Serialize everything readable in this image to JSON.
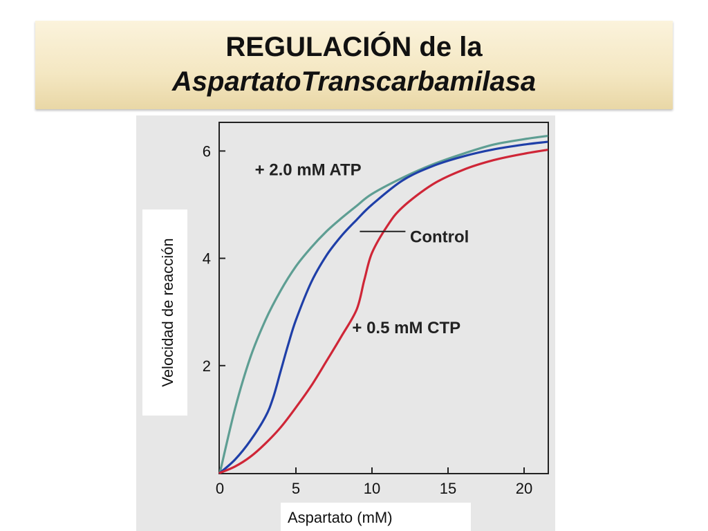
{
  "title": {
    "line1": "REGULACIÓN de la",
    "line2": "AspartatoTranscarbamilasa"
  },
  "colors": {
    "atp": "#5e9e93",
    "control": "#1f3fa8",
    "ctp": "#cf2637",
    "axis": "#222222"
  },
  "chart_data": {
    "type": "line",
    "title": "",
    "xlabel": "Aspartato (mM)",
    "ylabel": "Velocidad de reacción",
    "xlim": [
      0,
      21.5
    ],
    "ylim": [
      0,
      6.5
    ],
    "xticks": [
      0,
      5,
      10,
      15,
      20
    ],
    "yticks": [
      2,
      4,
      6
    ],
    "grid": false,
    "series": [
      {
        "name": "+ 2.0 mM ATP",
        "color_key": "atp",
        "points": [
          [
            0,
            0
          ],
          [
            1,
            1.2
          ],
          [
            2,
            2.15
          ],
          [
            3,
            2.85
          ],
          [
            4,
            3.4
          ],
          [
            5,
            3.85
          ],
          [
            6,
            4.2
          ],
          [
            7,
            4.5
          ],
          [
            8,
            4.75
          ],
          [
            9,
            4.98
          ],
          [
            10,
            5.2
          ],
          [
            12,
            5.5
          ],
          [
            14,
            5.75
          ],
          [
            16,
            5.95
          ],
          [
            18,
            6.12
          ],
          [
            20,
            6.22
          ],
          [
            21.5,
            6.28
          ]
        ]
      },
      {
        "name": "Control",
        "color_key": "control",
        "points": [
          [
            0,
            0
          ],
          [
            1,
            0.25
          ],
          [
            2,
            0.6
          ],
          [
            3,
            1.05
          ],
          [
            3.5,
            1.4
          ],
          [
            4,
            1.9
          ],
          [
            4.5,
            2.4
          ],
          [
            5,
            2.85
          ],
          [
            6,
            3.55
          ],
          [
            7,
            4.05
          ],
          [
            8,
            4.42
          ],
          [
            9,
            4.72
          ],
          [
            10,
            5.0
          ],
          [
            12,
            5.45
          ],
          [
            14,
            5.72
          ],
          [
            16,
            5.9
          ],
          [
            18,
            6.03
          ],
          [
            20,
            6.12
          ],
          [
            21.5,
            6.17
          ]
        ]
      },
      {
        "name": "+ 0.5 mM CTP",
        "color_key": "ctp",
        "points": [
          [
            0,
            0
          ],
          [
            1,
            0.12
          ],
          [
            2,
            0.3
          ],
          [
            3,
            0.55
          ],
          [
            4,
            0.85
          ],
          [
            5,
            1.22
          ],
          [
            6,
            1.62
          ],
          [
            7,
            2.08
          ],
          [
            8,
            2.55
          ],
          [
            9,
            3.05
          ],
          [
            9.5,
            3.6
          ],
          [
            10,
            4.1
          ],
          [
            11,
            4.6
          ],
          [
            12,
            4.95
          ],
          [
            14,
            5.38
          ],
          [
            16,
            5.65
          ],
          [
            18,
            5.83
          ],
          [
            20,
            5.95
          ],
          [
            21.5,
            6.02
          ]
        ]
      }
    ],
    "annotations": [
      {
        "text": "+ 2.0 mM ATP",
        "series": "+ 2.0 mM ATP"
      },
      {
        "text": "Control",
        "series": "Control"
      },
      {
        "text": "+ 0.5 mM CTP",
        "series": "+ 0.5 mM CTP"
      }
    ]
  }
}
